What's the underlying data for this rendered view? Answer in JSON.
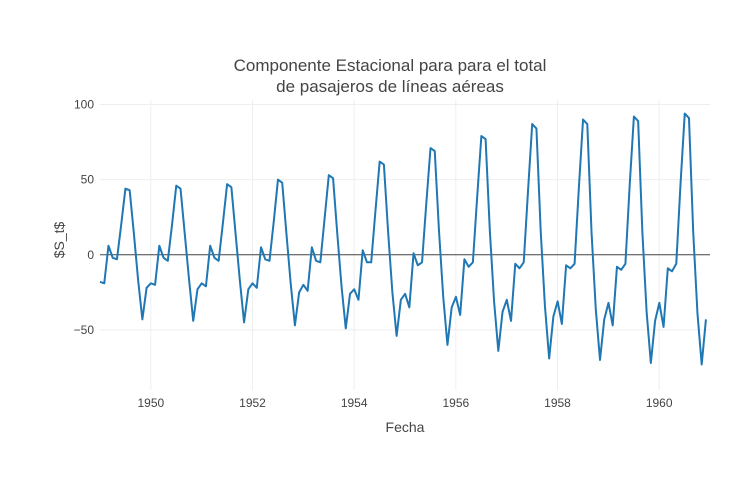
{
  "chart_data": {
    "type": "line",
    "title_lines": [
      "Componente Estacional para para el total",
      "de pasajeros de líneas aéreas"
    ],
    "xlabel": "Fecha",
    "ylabel": "$S_t$",
    "x_start_year": 1949,
    "x_end_year": 1960.92,
    "xlim": [
      1949,
      1961
    ],
    "xticks": [
      1950,
      1952,
      1954,
      1956,
      1958,
      1960
    ],
    "xtick_labels": [
      "1950",
      "1952",
      "1954",
      "1956",
      "1958",
      "1960"
    ],
    "ylim": [
      -90,
      103
    ],
    "yticks": [
      -50,
      0,
      50,
      100
    ],
    "ytick_labels": [
      "−50",
      "0",
      "50",
      "100"
    ],
    "grid": true,
    "zero_line": true,
    "series": [
      {
        "color": "#1f77b4",
        "values": [
          -18,
          -19,
          6,
          -2,
          -3,
          20,
          44,
          43,
          14,
          -17,
          -43,
          -22,
          -19,
          -20,
          6,
          -2,
          -4,
          20,
          46,
          44,
          14,
          -16,
          -44,
          -23,
          -19,
          -21,
          6,
          -2,
          -4,
          21,
          47,
          45,
          14,
          -17,
          -45,
          -23,
          -19,
          -22,
          5,
          -3,
          -4,
          22,
          50,
          48,
          14,
          -19,
          -47,
          -25,
          -20,
          -24,
          5,
          -4,
          -5,
          24,
          53,
          51,
          14,
          -21,
          -49,
          -26,
          -23,
          -30,
          3,
          -5,
          -5,
          29,
          62,
          60,
          15,
          -25,
          -54,
          -30,
          -26,
          -35,
          1,
          -7,
          -5,
          34,
          71,
          69,
          16,
          -28,
          -60,
          -35,
          -28,
          -40,
          -3,
          -8,
          -5,
          38,
          79,
          77,
          16,
          -31,
          -64,
          -38,
          -30,
          -44,
          -6,
          -9,
          -5,
          42,
          87,
          84,
          16,
          -34,
          -69,
          -41,
          -31,
          -46,
          -7,
          -9,
          -6,
          44,
          90,
          87,
          15,
          -36,
          -70,
          -43,
          -32,
          -47,
          -8,
          -10,
          -6,
          46,
          92,
          89,
          15,
          -38,
          -72,
          -44,
          -32,
          -48,
          -9,
          -11,
          -6,
          47,
          94,
          91,
          15,
          -39,
          -73,
          -43
        ]
      }
    ]
  }
}
